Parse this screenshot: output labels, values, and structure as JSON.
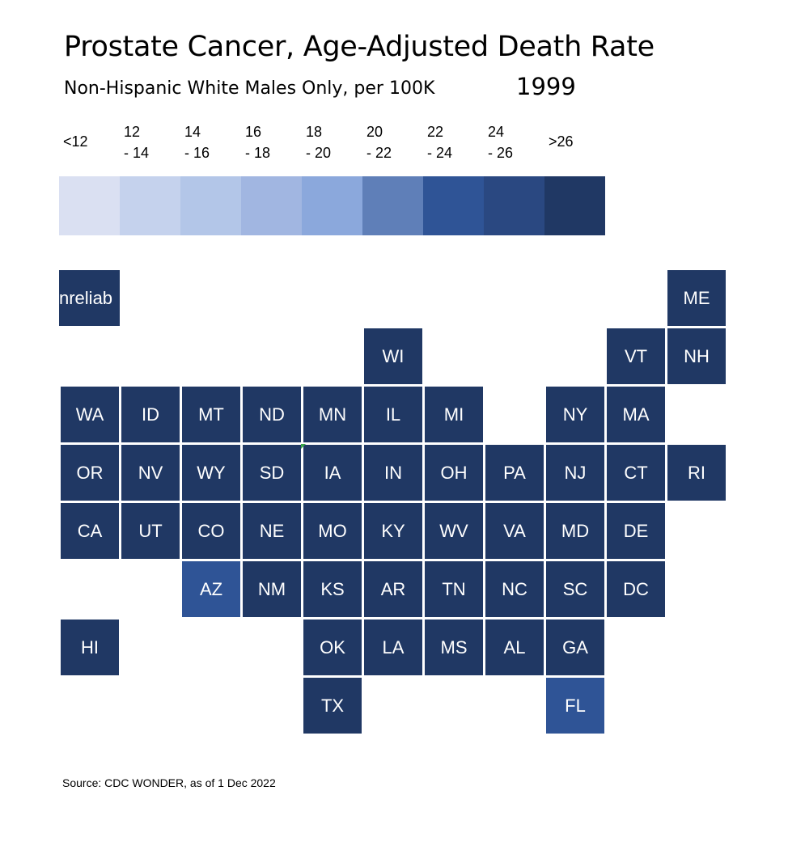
{
  "header": {
    "title": "Prostate Cancer, Age-Adjusted Death Rate",
    "subtitle": "Non-Hispanic White Males Only, per 100K",
    "year": "1999"
  },
  "legend": [
    {
      "label": "<12",
      "color": "#dae0f2"
    },
    {
      "label": "12\n- 14",
      "color": "#c5d2ed"
    },
    {
      "label": "14\n- 16",
      "color": "#b3c6e8"
    },
    {
      "label": "16\n- 18",
      "color": "#a1b6e1"
    },
    {
      "label": "18\n- 20",
      "color": "#8ba8dc"
    },
    {
      "label": "20\n- 22",
      "color": "#5f7fb8"
    },
    {
      "label": "22\n- 24",
      "color": "#2f5496"
    },
    {
      "label": "24\n- 26",
      "color": "#2a4881"
    },
    {
      "label": ">26",
      "color": "#203864"
    }
  ],
  "chart_data": {
    "type": "heatmap",
    "title": "Prostate Cancer, Age-Adjusted Death Rate",
    "subtitle": "Non-Hispanic White Males Only, per 100K",
    "year": "1999",
    "bins": [
      "<12",
      "12 - 14",
      "14 - 16",
      "16 - 18",
      "18 - 20",
      "20 - 22",
      "22 - 24",
      "24 - 26",
      ">26"
    ],
    "states": [
      {
        "label": "nreliab",
        "bin": ">26",
        "row": 0,
        "col": 0
      },
      {
        "label": "ME",
        "bin": ">26",
        "row": 0,
        "col": 10
      },
      {
        "label": "WI",
        "bin": ">26",
        "row": 1,
        "col": 5
      },
      {
        "label": "VT",
        "bin": ">26",
        "row": 1,
        "col": 9
      },
      {
        "label": "NH",
        "bin": ">26",
        "row": 1,
        "col": 10
      },
      {
        "label": "WA",
        "bin": ">26",
        "row": 2,
        "col": 0
      },
      {
        "label": "ID",
        "bin": ">26",
        "row": 2,
        "col": 1
      },
      {
        "label": "MT",
        "bin": ">26",
        "row": 2,
        "col": 2
      },
      {
        "label": "ND",
        "bin": ">26",
        "row": 2,
        "col": 3
      },
      {
        "label": "MN",
        "bin": ">26",
        "row": 2,
        "col": 4
      },
      {
        "label": "IL",
        "bin": ">26",
        "row": 2,
        "col": 5
      },
      {
        "label": "MI",
        "bin": ">26",
        "row": 2,
        "col": 6
      },
      {
        "label": "NY",
        "bin": ">26",
        "row": 2,
        "col": 8
      },
      {
        "label": "MA",
        "bin": ">26",
        "row": 2,
        "col": 9
      },
      {
        "label": "OR",
        "bin": ">26",
        "row": 3,
        "col": 0
      },
      {
        "label": "NV",
        "bin": ">26",
        "row": 3,
        "col": 1
      },
      {
        "label": "WY",
        "bin": ">26",
        "row": 3,
        "col": 2
      },
      {
        "label": "SD",
        "bin": ">26",
        "row": 3,
        "col": 3
      },
      {
        "label": "IA",
        "bin": ">26",
        "row": 3,
        "col": 4
      },
      {
        "label": "IN",
        "bin": ">26",
        "row": 3,
        "col": 5
      },
      {
        "label": "OH",
        "bin": ">26",
        "row": 3,
        "col": 6
      },
      {
        "label": "PA",
        "bin": ">26",
        "row": 3,
        "col": 7
      },
      {
        "label": "NJ",
        "bin": ">26",
        "row": 3,
        "col": 8
      },
      {
        "label": "CT",
        "bin": ">26",
        "row": 3,
        "col": 9
      },
      {
        "label": "RI",
        "bin": ">26",
        "row": 3,
        "col": 10
      },
      {
        "label": "CA",
        "bin": ">26",
        "row": 4,
        "col": 0
      },
      {
        "label": "UT",
        "bin": ">26",
        "row": 4,
        "col": 1
      },
      {
        "label": "CO",
        "bin": ">26",
        "row": 4,
        "col": 2
      },
      {
        "label": "NE",
        "bin": ">26",
        "row": 4,
        "col": 3
      },
      {
        "label": "MO",
        "bin": ">26",
        "row": 4,
        "col": 4
      },
      {
        "label": "KY",
        "bin": ">26",
        "row": 4,
        "col": 5
      },
      {
        "label": "WV",
        "bin": ">26",
        "row": 4,
        "col": 6
      },
      {
        "label": "VA",
        "bin": ">26",
        "row": 4,
        "col": 7
      },
      {
        "label": "MD",
        "bin": ">26",
        "row": 4,
        "col": 8
      },
      {
        "label": "DE",
        "bin": ">26",
        "row": 4,
        "col": 9
      },
      {
        "label": "AZ",
        "bin": "22 - 24",
        "row": 5,
        "col": 2
      },
      {
        "label": "NM",
        "bin": ">26",
        "row": 5,
        "col": 3
      },
      {
        "label": "KS",
        "bin": ">26",
        "row": 5,
        "col": 4
      },
      {
        "label": "AR",
        "bin": ">26",
        "row": 5,
        "col": 5
      },
      {
        "label": "TN",
        "bin": ">26",
        "row": 5,
        "col": 6
      },
      {
        "label": "NC",
        "bin": ">26",
        "row": 5,
        "col": 7
      },
      {
        "label": "SC",
        "bin": ">26",
        "row": 5,
        "col": 8
      },
      {
        "label": "DC",
        "bin": ">26",
        "row": 5,
        "col": 9
      },
      {
        "label": "HI",
        "bin": ">26",
        "row": 6,
        "col": 0
      },
      {
        "label": "OK",
        "bin": ">26",
        "row": 6,
        "col": 4
      },
      {
        "label": "LA",
        "bin": ">26",
        "row": 6,
        "col": 5
      },
      {
        "label": "MS",
        "bin": ">26",
        "row": 6,
        "col": 6
      },
      {
        "label": "AL",
        "bin": ">26",
        "row": 6,
        "col": 7
      },
      {
        "label": "GA",
        "bin": ">26",
        "row": 6,
        "col": 8
      },
      {
        "label": "TX",
        "bin": ">26",
        "row": 7,
        "col": 4
      },
      {
        "label": "FL",
        "bin": "22 - 24",
        "row": 7,
        "col": 8
      }
    ]
  },
  "footer": {
    "source": "Source: CDC WONDER, as of 1 Dec 2022"
  }
}
